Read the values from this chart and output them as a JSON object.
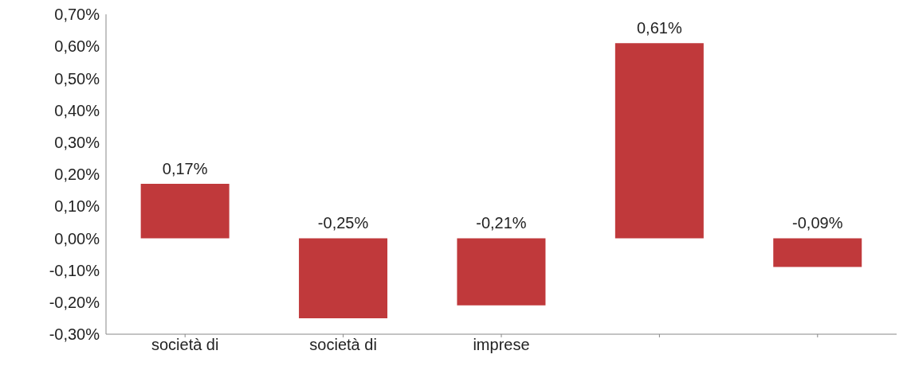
{
  "chart_data": {
    "type": "bar",
    "categories": [
      "società di",
      "società di",
      "imprese",
      null,
      null
    ],
    "values": [
      0.17,
      -0.25,
      -0.21,
      0.61,
      -0.09
    ],
    "value_labels": [
      "0,17%",
      "-0,25%",
      "-0,21%",
      "0,61%",
      "-0,09%"
    ],
    "color": "#c0393b",
    "ylim": [
      -0.3,
      0.7
    ],
    "yticks": [
      {
        "value": -0.3,
        "label": "-0,30%"
      },
      {
        "value": -0.2,
        "label": "-0,20%"
      },
      {
        "value": -0.1,
        "label": "-0,10%"
      },
      {
        "value": 0,
        "label": "0,00%"
      },
      {
        "value": 0.1,
        "label": "0,10%"
      },
      {
        "value": 0.2,
        "label": "0,20%"
      },
      {
        "value": 0.3,
        "label": "0,30%"
      },
      {
        "value": 0.4,
        "label": "0,40%"
      },
      {
        "value": 0.5,
        "label": "0,50%"
      },
      {
        "value": 0.6,
        "label": "0,60%"
      },
      {
        "value": 0.7,
        "label": "0,70%"
      }
    ],
    "grid": false,
    "legend": false
  }
}
